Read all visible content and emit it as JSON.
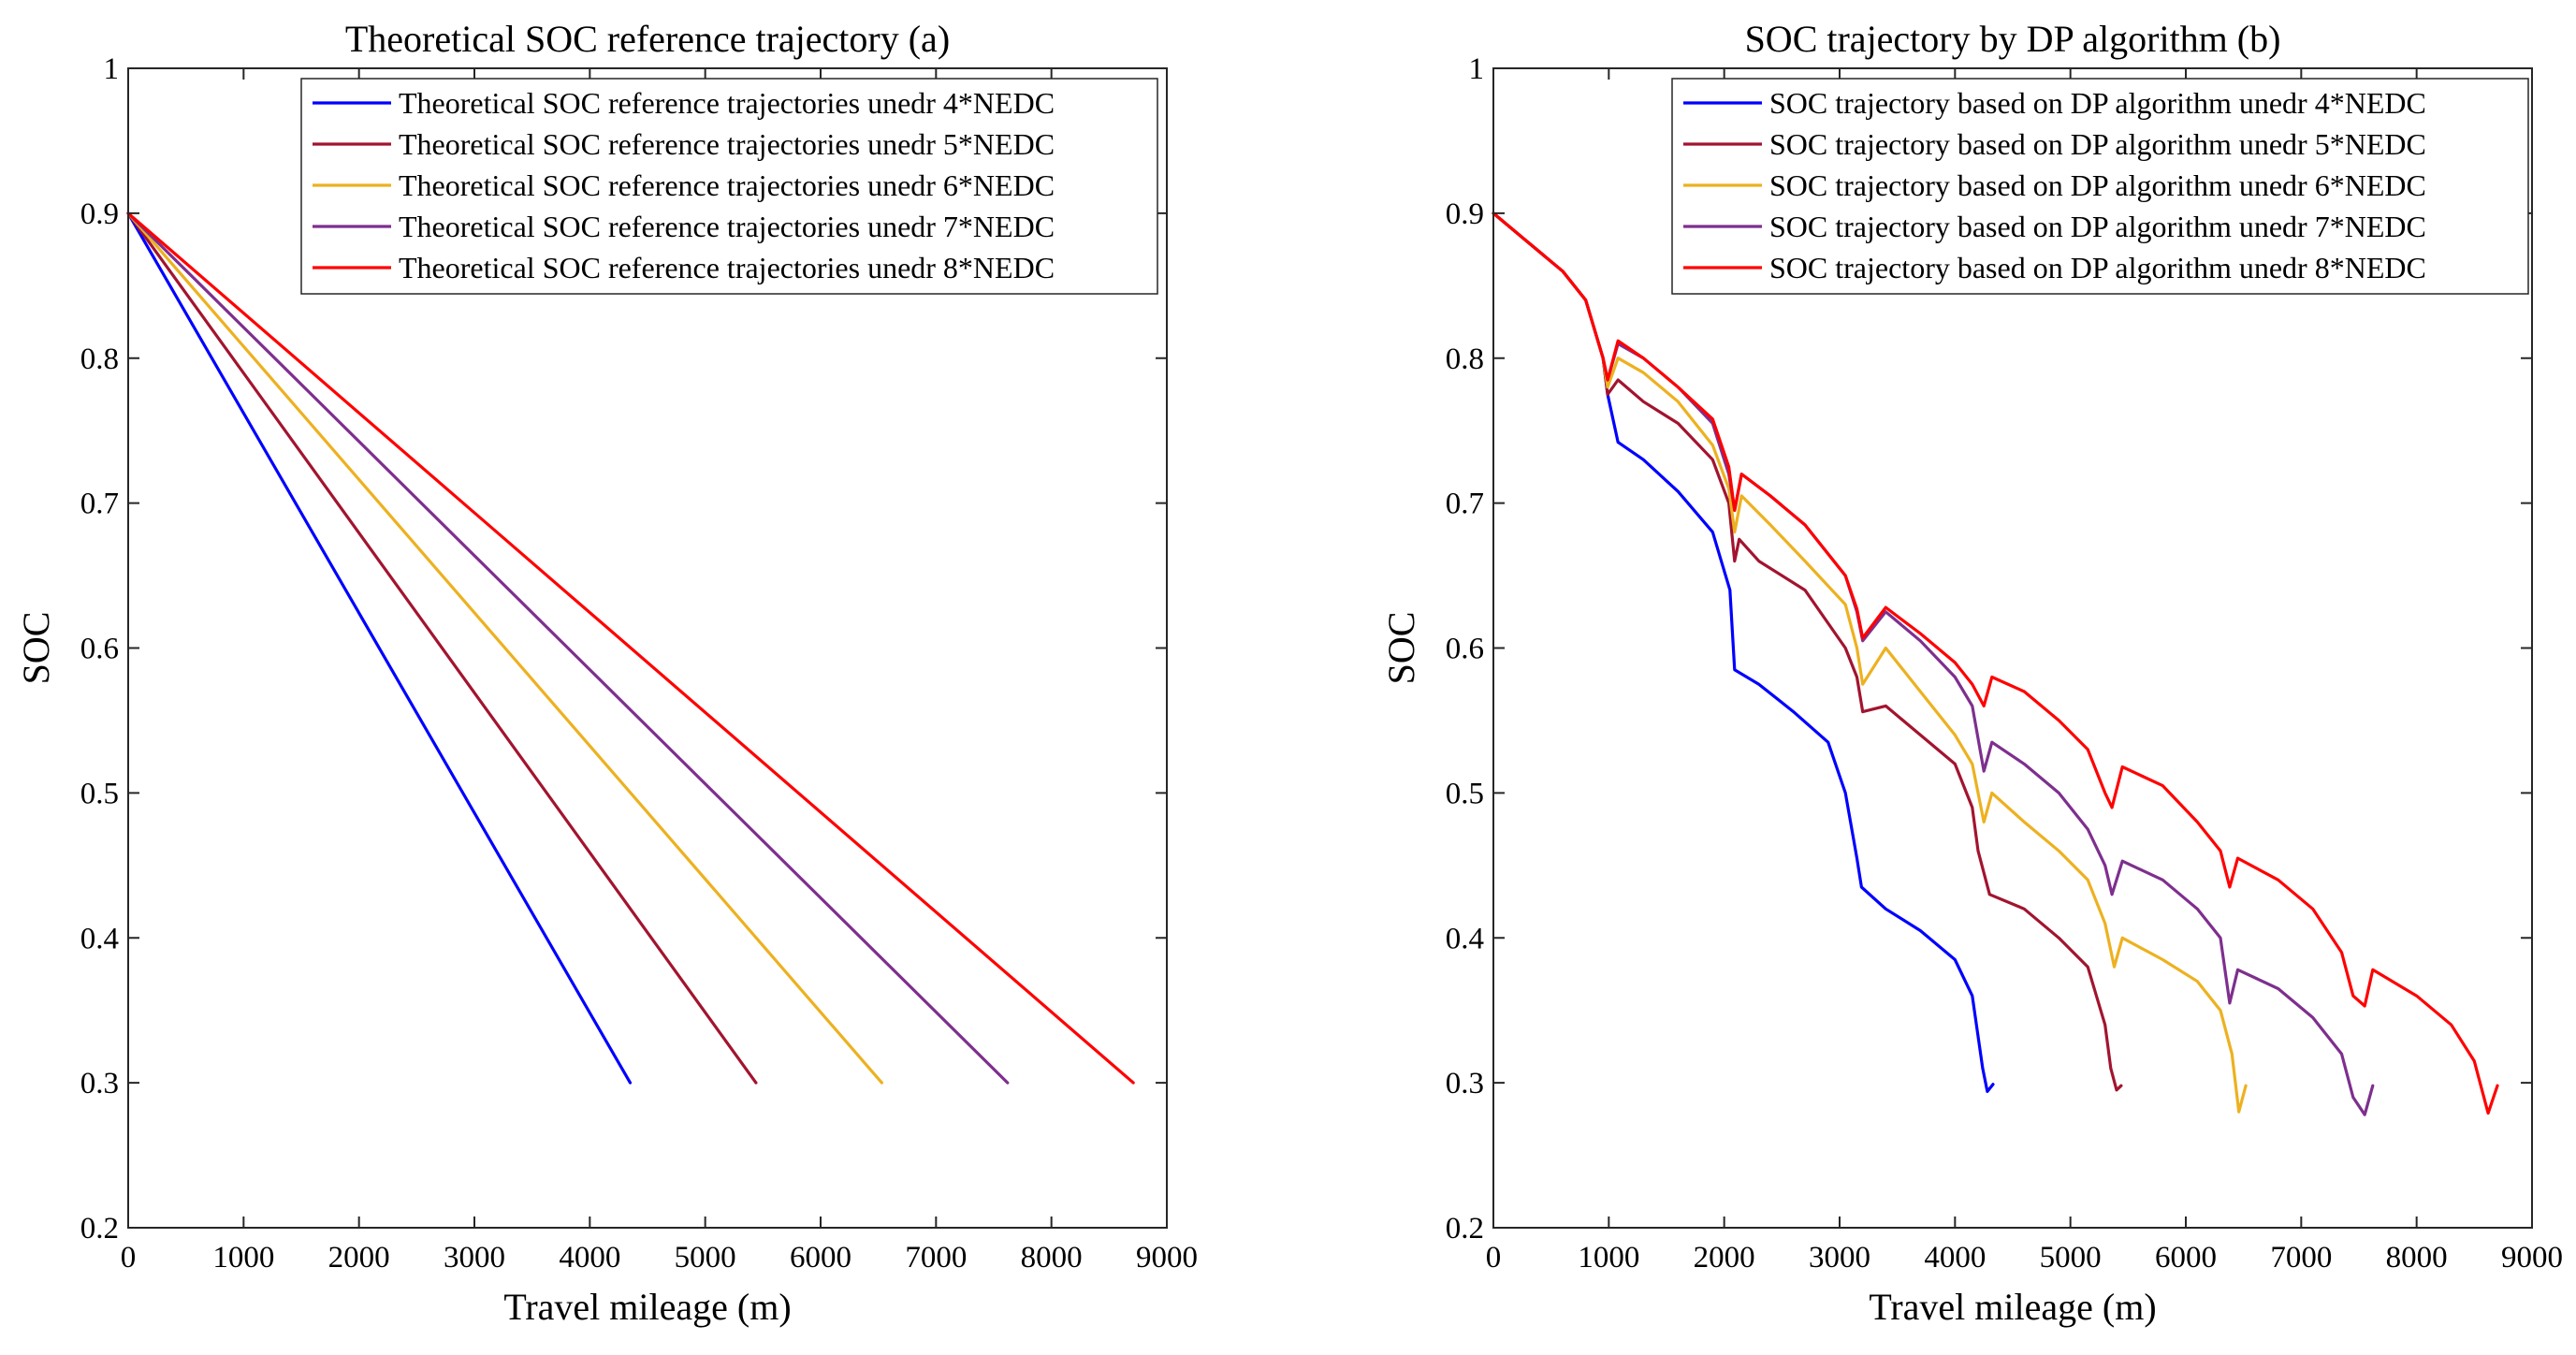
{
  "chart_data": [
    {
      "type": "line",
      "title": "Theoretical SOC reference trajectory (a)",
      "xlabel": "Travel mileage (m)",
      "ylabel": "SOC",
      "xlim": [
        0,
        9000
      ],
      "ylim": [
        0.2,
        1
      ],
      "xticks": [
        0,
        1000,
        2000,
        3000,
        4000,
        5000,
        6000,
        7000,
        8000,
        9000
      ],
      "yticks": [
        0.2,
        0.3,
        0.4,
        0.5,
        0.6,
        0.7,
        0.8,
        0.9,
        1
      ],
      "ytick_labels": [
        "0.2",
        "0.3",
        "0.4",
        "0.5",
        "0.6",
        "0.7",
        "0.8",
        "0.9",
        "1"
      ],
      "grid": false,
      "legend_position": "top-right",
      "series": [
        {
          "name": "Theoretical SOC reference trajectories unedr 4*NEDC",
          "color": "#0000ff",
          "x": [
            0,
            4350
          ],
          "y": [
            0.9,
            0.3
          ]
        },
        {
          "name": "Theoretical SOC reference trajectories unedr 5*NEDC",
          "color": "#a2142f",
          "x": [
            0,
            5440
          ],
          "y": [
            0.9,
            0.3
          ]
        },
        {
          "name": "Theoretical SOC reference trajectories unedr 6*NEDC",
          "color": "#edb120",
          "x": [
            0,
            6530
          ],
          "y": [
            0.9,
            0.3
          ]
        },
        {
          "name": "Theoretical SOC reference trajectories unedr 7*NEDC",
          "color": "#7e2f8e",
          "x": [
            0,
            7620
          ],
          "y": [
            0.9,
            0.3
          ]
        },
        {
          "name": "Theoretical SOC reference trajectories unedr 8*NEDC",
          "color": "#ff0000",
          "x": [
            0,
            8710
          ],
          "y": [
            0.9,
            0.3
          ]
        }
      ]
    },
    {
      "type": "line",
      "title": "SOC trajectory by DP algorithm (b)",
      "xlabel": "Travel mileage (m)",
      "ylabel": "SOC",
      "xlim": [
        0,
        9000
      ],
      "ylim": [
        0.2,
        1
      ],
      "xticks": [
        0,
        1000,
        2000,
        3000,
        4000,
        5000,
        6000,
        7000,
        8000,
        9000
      ],
      "yticks": [
        0.2,
        0.3,
        0.4,
        0.5,
        0.6,
        0.7,
        0.8,
        0.9,
        1
      ],
      "ytick_labels": [
        "0.2",
        "0.3",
        "0.4",
        "0.5",
        "0.6",
        "0.7",
        "0.8",
        "0.9",
        "1"
      ],
      "grid": false,
      "legend_position": "top-right",
      "series": [
        {
          "name": "SOC trajectory based on DP algorithm unedr 4*NEDC",
          "color": "#0000ff",
          "x": [
            0,
            300,
            600,
            800,
            950,
            990,
            1080,
            1300,
            1600,
            1900,
            2050,
            2090,
            2300,
            2600,
            2900,
            3050,
            3150,
            3190,
            3400,
            3700,
            4000,
            4150,
            4240,
            4280,
            4330
          ],
          "y": [
            0.9,
            0.88,
            0.86,
            0.84,
            0.8,
            0.775,
            0.742,
            0.73,
            0.708,
            0.68,
            0.64,
            0.585,
            0.575,
            0.556,
            0.535,
            0.5,
            0.455,
            0.435,
            0.42,
            0.405,
            0.385,
            0.36,
            0.31,
            0.294,
            0.299
          ]
        },
        {
          "name": "SOC trajectory based on DP algorithm unedr 5*NEDC",
          "color": "#a2142f",
          "x": [
            0,
            300,
            600,
            800,
            950,
            990,
            1080,
            1300,
            1600,
            1900,
            2040,
            2090,
            2130,
            2300,
            2700,
            3050,
            3150,
            3200,
            3400,
            3700,
            4000,
            4150,
            4200,
            4300,
            4600,
            4900,
            5150,
            5300,
            5350,
            5400,
            5440
          ],
          "y": [
            0.9,
            0.88,
            0.86,
            0.84,
            0.8,
            0.775,
            0.785,
            0.77,
            0.755,
            0.73,
            0.7,
            0.66,
            0.675,
            0.66,
            0.64,
            0.6,
            0.58,
            0.556,
            0.56,
            0.54,
            0.52,
            0.49,
            0.46,
            0.43,
            0.42,
            0.4,
            0.38,
            0.34,
            0.31,
            0.295,
            0.298
          ]
        },
        {
          "name": "SOC trajectory based on DP algorithm unedr 6*NEDC",
          "color": "#edb120",
          "x": [
            0,
            300,
            600,
            800,
            950,
            990,
            1080,
            1300,
            1600,
            1900,
            2040,
            2090,
            2150,
            2400,
            2700,
            3050,
            3150,
            3200,
            3400,
            3700,
            4000,
            4150,
            4250,
            4320,
            4600,
            4900,
            5150,
            5300,
            5380,
            5450,
            5800,
            6100,
            6300,
            6400,
            6460,
            6520
          ],
          "y": [
            0.9,
            0.88,
            0.86,
            0.84,
            0.8,
            0.78,
            0.8,
            0.79,
            0.77,
            0.74,
            0.71,
            0.68,
            0.705,
            0.685,
            0.66,
            0.63,
            0.6,
            0.575,
            0.6,
            0.57,
            0.54,
            0.52,
            0.48,
            0.5,
            0.48,
            0.46,
            0.44,
            0.41,
            0.38,
            0.4,
            0.385,
            0.37,
            0.35,
            0.32,
            0.28,
            0.298
          ]
        },
        {
          "name": "SOC trajectory based on DP algorithm unedr 7*NEDC",
          "color": "#7e2f8e",
          "x": [
            0,
            300,
            600,
            800,
            950,
            990,
            1080,
            1300,
            1600,
            1900,
            2040,
            2090,
            2150,
            2400,
            2700,
            3050,
            3150,
            3200,
            3400,
            3700,
            4000,
            4150,
            4250,
            4320,
            4600,
            4900,
            5150,
            5300,
            5360,
            5450,
            5800,
            6100,
            6300,
            6380,
            6450,
            6800,
            7100,
            7350,
            7450,
            7550,
            7620
          ],
          "y": [
            0.9,
            0.88,
            0.86,
            0.84,
            0.8,
            0.785,
            0.81,
            0.8,
            0.78,
            0.755,
            0.72,
            0.695,
            0.72,
            0.705,
            0.685,
            0.65,
            0.625,
            0.605,
            0.625,
            0.605,
            0.58,
            0.56,
            0.515,
            0.535,
            0.52,
            0.5,
            0.475,
            0.45,
            0.43,
            0.453,
            0.44,
            0.42,
            0.4,
            0.355,
            0.378,
            0.365,
            0.345,
            0.32,
            0.29,
            0.278,
            0.298
          ]
        },
        {
          "name": "SOC trajectory based on DP algorithm unedr 8*NEDC",
          "color": "#ff0000",
          "x": [
            0,
            300,
            600,
            800,
            950,
            990,
            1080,
            1300,
            1600,
            1900,
            2040,
            2090,
            2150,
            2400,
            2700,
            3050,
            3150,
            3200,
            3400,
            3700,
            4000,
            4150,
            4250,
            4320,
            4600,
            4900,
            5150,
            5300,
            5360,
            5450,
            5800,
            6100,
            6300,
            6380,
            6450,
            6800,
            7100,
            7350,
            7450,
            7550,
            7620,
            8000,
            8300,
            8500,
            8620,
            8700
          ],
          "y": [
            0.9,
            0.88,
            0.86,
            0.84,
            0.8,
            0.785,
            0.812,
            0.8,
            0.78,
            0.758,
            0.725,
            0.695,
            0.72,
            0.705,
            0.685,
            0.65,
            0.627,
            0.607,
            0.628,
            0.61,
            0.59,
            0.575,
            0.56,
            0.58,
            0.57,
            0.55,
            0.53,
            0.5,
            0.49,
            0.518,
            0.505,
            0.48,
            0.46,
            0.435,
            0.455,
            0.44,
            0.42,
            0.39,
            0.36,
            0.353,
            0.378,
            0.36,
            0.34,
            0.315,
            0.279,
            0.298
          ]
        }
      ]
    }
  ]
}
